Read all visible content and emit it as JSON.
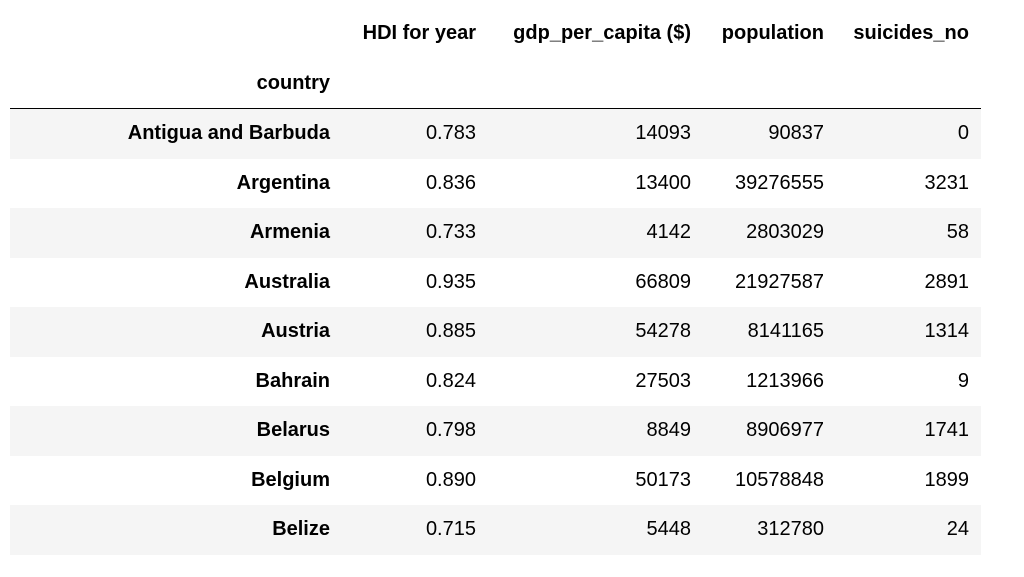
{
  "table": {
    "columns": [
      "HDI for year",
      "gdp_per_capita ($)",
      "population",
      "suicides_no"
    ],
    "index_name": "country",
    "rows": [
      {
        "country": "Antigua and Barbuda",
        "values": [
          "0.783",
          "14093",
          "90837",
          "0"
        ]
      },
      {
        "country": "Argentina",
        "values": [
          "0.836",
          "13400",
          "39276555",
          "3231"
        ]
      },
      {
        "country": "Armenia",
        "values": [
          "0.733",
          "4142",
          "2803029",
          "58"
        ]
      },
      {
        "country": "Australia",
        "values": [
          "0.935",
          "66809",
          "21927587",
          "2891"
        ]
      },
      {
        "country": "Austria",
        "values": [
          "0.885",
          "54278",
          "8141165",
          "1314"
        ]
      },
      {
        "country": "Bahrain",
        "values": [
          "0.824",
          "27503",
          "1213966",
          "9"
        ]
      },
      {
        "country": "Belarus",
        "values": [
          "0.798",
          "8849",
          "8906977",
          "1741"
        ]
      },
      {
        "country": "Belgium",
        "values": [
          "0.890",
          "50173",
          "10578848",
          "1899"
        ]
      },
      {
        "country": "Belize",
        "values": [
          "0.715",
          "5448",
          "312780",
          "24"
        ]
      }
    ]
  }
}
